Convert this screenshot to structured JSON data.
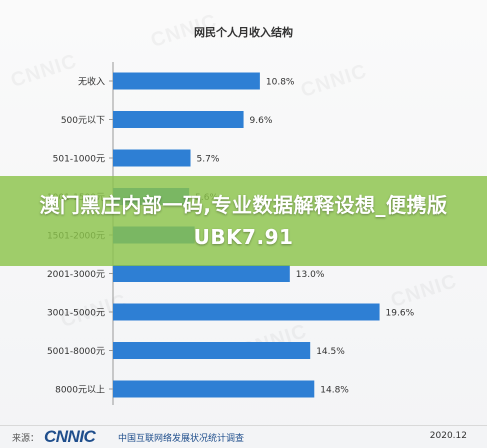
{
  "chart_data": {
    "type": "bar",
    "orientation": "horizontal",
    "title": "网民个人月收入结构",
    "categories": [
      "无收入",
      "500元以下",
      "501-1000元",
      "1001-1500元",
      "1501-2000元",
      "2001-3000元",
      "3001-5000元",
      "5001-8000元",
      "8000元以上"
    ],
    "values": [
      10.8,
      9.6,
      5.7,
      5.6,
      6.0,
      13.0,
      19.6,
      14.5,
      14.8
    ],
    "data_labels": [
      "10.8%",
      "9.6%",
      "5.7%",
      "5.6%",
      "",
      "13.0%",
      "19.6%",
      "14.5%",
      "14.8%"
    ],
    "xlim": [
      0,
      20
    ],
    "grid": false,
    "bar_color": "#2e7fd4",
    "legend": "none"
  },
  "overlay": {
    "text": "澳门黑庄内部一码,专业数据解释设想_便携版UBK7.91",
    "color": "#8bc34a"
  },
  "footer": {
    "source_label": "来源：",
    "logo_text": "CNNIC",
    "org_text": "中国互联网络发展状况统计调查",
    "date_text": "2020.12"
  },
  "colors": {
    "bar": "#2e7fd4",
    "axis": "#999999",
    "brand": "#1f4e8c"
  }
}
